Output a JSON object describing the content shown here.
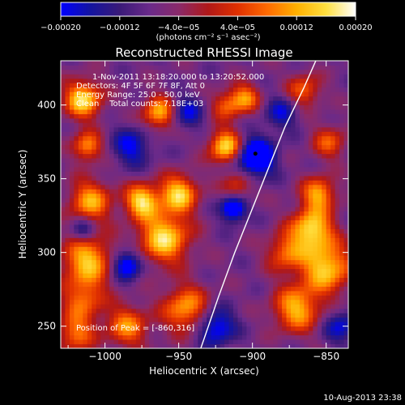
{
  "chart_data": {
    "type": "heatmap",
    "title": "Reconstructed RHESSI Image",
    "xlabel": "Heliocentric X (arcsec)",
    "ylabel": "Heliocentric Y (arcsec)",
    "xlim": [
      -1030,
      -835
    ],
    "ylim": [
      235,
      430
    ],
    "x_ticks": [
      -1000,
      -950,
      -900,
      -850
    ],
    "x_tick_labels": [
      "−1000",
      "−950",
      "−900",
      "−850"
    ],
    "y_ticks": [
      250,
      300,
      350,
      400
    ],
    "y_tick_labels": [
      "250",
      "300",
      "350",
      "400"
    ],
    "colorbar": {
      "range": [
        -0.0002,
        0.0002
      ],
      "ticks": [
        -0.0002,
        -0.00012,
        -4e-05,
        4e-05,
        0.00012,
        0.0002
      ],
      "tick_labels": [
        "−0.00020",
        "−0.00012",
        "−4.0e−05",
        "4.0e−05",
        "0.00012",
        "0.00020"
      ],
      "unit_label": "(photons cm⁻² s⁻¹ asec⁻²)",
      "colormap": [
        "#0000ff",
        "#1414a0",
        "#3a1a78",
        "#6a2a8a",
        "#8a2a6a",
        "#b01818",
        "#e03000",
        "#ff6a00",
        "#ffb000",
        "#ffe040",
        "#ffffff"
      ]
    },
    "annotations": [
      "1-Nov-2011 13:18:20.000 to 13:20:52.000",
      "Detectors: 4F 5F 6F 7F 8F, Att 0",
      "Energy Range: 25.0 - 50.0 keV",
      "Clean    Total counts: 7.18E+03"
    ],
    "peak_label": "Position of Peak = [-860,316]",
    "peak": [
      -860,
      316
    ],
    "marker": [
      -898,
      367
    ],
    "limb_curve": [
      [
        -935,
        235
      ],
      [
        -923,
        270
      ],
      [
        -912,
        300
      ],
      [
        -900,
        330
      ],
      [
        -890,
        355
      ],
      [
        -878,
        385
      ],
      [
        -865,
        412
      ],
      [
        -857,
        430
      ]
    ],
    "hot_spots": [
      {
        "x": -1015,
        "y": 404,
        "v": 1.0,
        "r": 9
      },
      {
        "x": -1012,
        "y": 372,
        "v": 0.75,
        "r": 7
      },
      {
        "x": -1010,
        "y": 335,
        "v": 0.8,
        "r": 10
      },
      {
        "x": -1012,
        "y": 295,
        "v": 0.9,
        "r": 12
      },
      {
        "x": -1015,
        "y": 268,
        "v": 0.6,
        "r": 10
      },
      {
        "x": -985,
        "y": 250,
        "v": 0.7,
        "r": 10
      },
      {
        "x": -975,
        "y": 335,
        "v": 1.0,
        "r": 8
      },
      {
        "x": -963,
        "y": 395,
        "v": 0.85,
        "r": 8
      },
      {
        "x": -960,
        "y": 310,
        "v": 1.0,
        "r": 12
      },
      {
        "x": -950,
        "y": 340,
        "v": 0.95,
        "r": 9
      },
      {
        "x": -945,
        "y": 262,
        "v": 0.8,
        "r": 11
      },
      {
        "x": -918,
        "y": 372,
        "v": 1.0,
        "r": 8
      },
      {
        "x": -918,
        "y": 400,
        "v": 0.55,
        "r": 7
      },
      {
        "x": -905,
        "y": 405,
        "v": 0.7,
        "r": 7
      },
      {
        "x": -910,
        "y": 345,
        "v": 0.5,
        "r": 7
      },
      {
        "x": -860,
        "y": 316,
        "v": 1.0,
        "r": 10
      },
      {
        "x": -850,
        "y": 290,
        "v": 0.95,
        "r": 12
      },
      {
        "x": -855,
        "y": 340,
        "v": 0.8,
        "r": 8
      },
      {
        "x": -870,
        "y": 262,
        "v": 0.85,
        "r": 11
      },
      {
        "x": -878,
        "y": 300,
        "v": 0.6,
        "r": 9
      },
      {
        "x": -865,
        "y": 410,
        "v": 0.6,
        "r": 8
      },
      {
        "x": -848,
        "y": 375,
        "v": 0.55,
        "r": 8
      },
      {
        "x": -1020,
        "y": 245,
        "v": 0.65,
        "r": 9
      }
    ],
    "cold_spots": [
      {
        "x": -898,
        "y": 365,
        "v": -1.0,
        "r": 9
      },
      {
        "x": -913,
        "y": 330,
        "v": -0.9,
        "r": 6
      },
      {
        "x": -985,
        "y": 292,
        "v": -0.8,
        "r": 7
      },
      {
        "x": -1015,
        "y": 315,
        "v": -0.5,
        "r": 6
      },
      {
        "x": -925,
        "y": 250,
        "v": -0.7,
        "r": 9
      },
      {
        "x": -982,
        "y": 372,
        "v": -0.55,
        "r": 9
      },
      {
        "x": -945,
        "y": 395,
        "v": -0.5,
        "r": 8
      },
      {
        "x": -880,
        "y": 395,
        "v": -0.45,
        "r": 8
      },
      {
        "x": -840,
        "y": 250,
        "v": -0.5,
        "r": 8
      }
    ]
  },
  "footer": {
    "timestamp": "10-Aug-2013 23:38"
  }
}
